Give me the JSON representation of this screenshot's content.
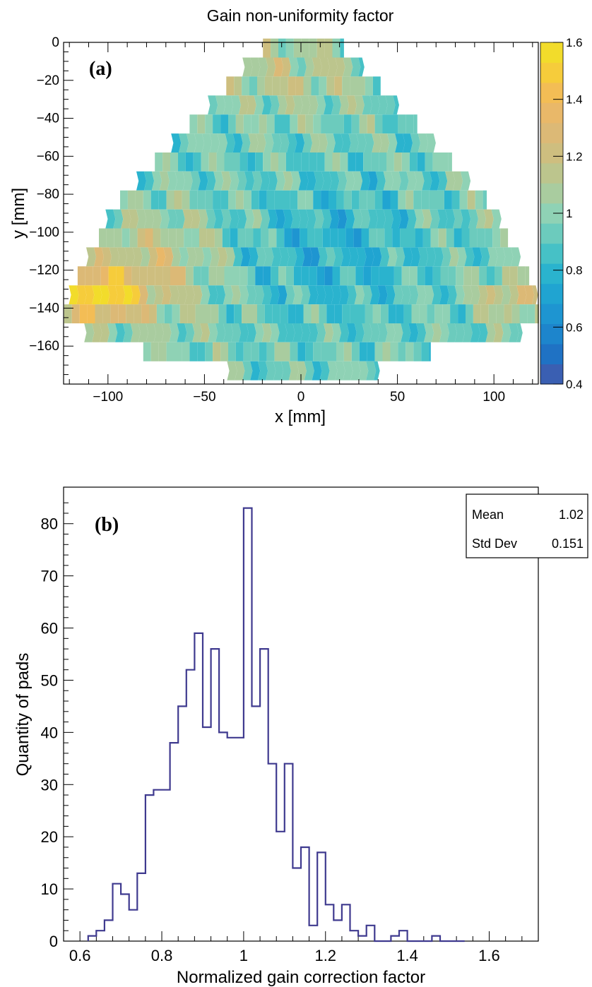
{
  "chart_data": [
    {
      "type": "heatmap",
      "title": "Gain non-uniformity factor",
      "xlabel": "x [mm]",
      "ylabel": "y [mm]",
      "panel_label": "(a)",
      "xlim": [
        -123,
        123
      ],
      "ylim": [
        -180,
        0
      ],
      "x_ticks": [
        -100,
        -50,
        0,
        50,
        100
      ],
      "y_ticks": [
        0,
        -20,
        -40,
        -60,
        -80,
        -100,
        -120,
        -140,
        -160
      ],
      "colorbar": {
        "min": 0.4,
        "max": 1.6,
        "ticks": [
          1.6,
          1.4,
          1.2,
          1,
          0.8,
          0.6,
          0.4
        ],
        "tick_labels": [
          "1.6",
          "1.4",
          "1.2",
          "1",
          "0.8",
          "0.6",
          "0.4"
        ],
        "colors": [
          "#3a5fb2",
          "#1f72c4",
          "#1d85cc",
          "#1e95d1",
          "#20a4d1",
          "#2ab3ce",
          "#46c1c6",
          "#6ccbbd",
          "#8fd2b5",
          "#a9cc9f",
          "#bcc58d",
          "#cebe7f",
          "#dcb976",
          "#e9b869",
          "#f3bd55",
          "#f6cc3b",
          "#f2dc2b"
        ]
      },
      "pad_rows": [
        {
          "y": -3,
          "x_min": -20,
          "x_max": 22
        },
        {
          "y": -13,
          "x_min": -30,
          "x_max": 32
        },
        {
          "y": -23,
          "x_min": -39,
          "x_max": 41
        },
        {
          "y": -33,
          "x_min": -48,
          "x_max": 50
        },
        {
          "y": -43,
          "x_min": -58,
          "x_max": 60
        },
        {
          "y": -53,
          "x_min": -67,
          "x_max": 69
        },
        {
          "y": -63,
          "x_min": -76,
          "x_max": 78
        },
        {
          "y": -73,
          "x_min": -85,
          "x_max": 87
        },
        {
          "y": -83,
          "x_min": -94,
          "x_max": 96
        },
        {
          "y": -93,
          "x_min": -101,
          "x_max": 103
        },
        {
          "y": -103,
          "x_min": -105,
          "x_max": 107
        },
        {
          "y": -113,
          "x_min": -111,
          "x_max": 113
        },
        {
          "y": -123,
          "x_min": -116,
          "x_max": 118
        },
        {
          "y": -133,
          "x_min": -120,
          "x_max": 122
        },
        {
          "y": -143,
          "x_min": -123,
          "x_max": 123
        },
        {
          "y": -153,
          "x_min": -112,
          "x_max": 114
        },
        {
          "y": -163,
          "x_min": -82,
          "x_max": 67
        },
        {
          "y": -173,
          "x_min": -38,
          "x_max": 40
        }
      ]
    },
    {
      "type": "bar",
      "histogram": true,
      "panel_label": "(b)",
      "xlabel": "Normalized gain correction factor",
      "ylabel": "Quantity of pads",
      "xlim": [
        0.56,
        1.72
      ],
      "ylim": [
        0,
        87
      ],
      "x_ticks": [
        0.6,
        0.8,
        1,
        1.2,
        1.4,
        1.6
      ],
      "x_tick_labels": [
        "0.6",
        "0.8",
        "1",
        "1.2",
        "1.4",
        "1.6"
      ],
      "y_ticks": [
        0,
        10,
        20,
        30,
        40,
        50,
        60,
        70,
        80
      ],
      "bin_start": 0.62,
      "bin_width": 0.02,
      "counts": [
        1,
        2,
        4,
        11,
        9,
        6,
        13,
        28,
        29,
        29,
        38,
        45,
        52,
        59,
        41,
        56,
        40,
        39,
        39,
        83,
        45,
        56,
        34,
        21,
        34,
        14,
        18,
        3,
        17,
        7,
        4,
        7,
        2,
        1,
        3,
        0,
        0,
        1,
        2,
        0,
        0,
        0,
        1,
        0,
        0,
        0
      ],
      "stats": [
        {
          "label": "Mean",
          "value": "1.02"
        },
        {
          "label": "Std Dev",
          "value": "0.151"
        }
      ],
      "line_color": "#3f3a8f"
    }
  ]
}
